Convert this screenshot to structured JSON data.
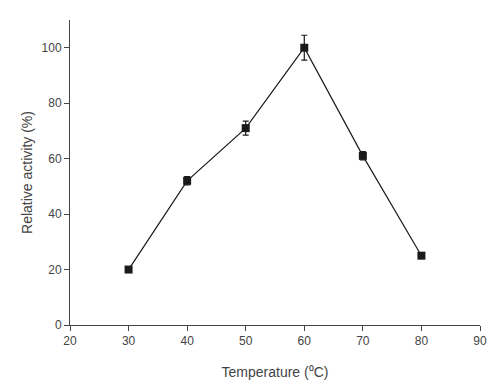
{
  "chart_data": {
    "type": "line",
    "x": [
      30,
      40,
      50,
      60,
      70,
      80
    ],
    "values": [
      20,
      52,
      71,
      100,
      61,
      25
    ],
    "yerr": [
      1.0,
      1.5,
      2.5,
      4.5,
      1.5,
      1.0
    ],
    "xlabel": "Temperature (⁰C)",
    "ylabel": "Relative activity (%)",
    "xlim": [
      20,
      90
    ],
    "ylim": [
      0,
      110
    ],
    "xticks": [
      20,
      30,
      40,
      50,
      60,
      70,
      80,
      90
    ],
    "yticks": [
      0,
      20,
      40,
      60,
      80,
      100
    ],
    "color": "#1a1a1a",
    "marker": "square",
    "line_style": "solid",
    "grid": false
  }
}
